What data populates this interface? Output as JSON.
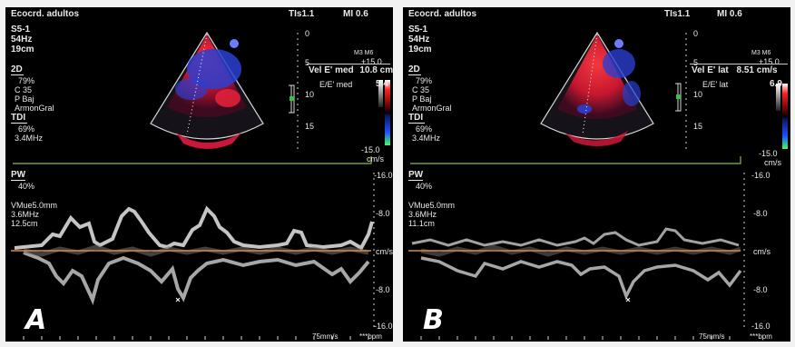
{
  "panels": [
    {
      "letter": "A",
      "header": {
        "title": "Ecocrd. adultos",
        "ti": "TIs1.1",
        "mi": "MI 0.6"
      },
      "probe": {
        "model": "S5-1",
        "frame_rate": "54Hz",
        "depth": "19cm"
      },
      "mode_2d": {
        "label": "2D",
        "gain": "79%",
        "compression": "C 35",
        "power": "P Baj",
        "harmonic": "ArmonGral"
      },
      "tdi": {
        "label": "TDI",
        "gain": "69%",
        "freq": "3.4MHz"
      },
      "depth_scale": [
        "0",
        "5",
        "10",
        "15"
      ],
      "color_scale": {
        "mode": "M3 M6",
        "top": "+15.0",
        "bottom": "-15.0",
        "unit": "cm/s"
      },
      "measurements": {
        "vel_label": "Vel E' med",
        "vel_value": "10.8 cm/s",
        "ratio_label": "E/E' med",
        "ratio_value": "5.4"
      },
      "pw": {
        "label": "PW",
        "gain": "40%",
        "sample": "VMue5.0mm",
        "freq": "3.6MHz",
        "depth": "12.5cm"
      },
      "velocity_scale": [
        "-16.0",
        "-8.0",
        "cm/s",
        "-8.0",
        "-16.0"
      ],
      "sweep": "75mm/s",
      "bpm": "***bpm"
    },
    {
      "letter": "B",
      "header": {
        "title": "Ecocrd. adultos",
        "ti": "TIs1.1",
        "mi": "MI 0.6"
      },
      "probe": {
        "model": "S5-1",
        "frame_rate": "54Hz",
        "depth": "19cm"
      },
      "mode_2d": {
        "label": "2D",
        "gain": "79%",
        "compression": "C 35",
        "power": "P Baj",
        "harmonic": "ArmonGral"
      },
      "tdi": {
        "label": "TDI",
        "gain": "69%",
        "freq": "3.4MHz"
      },
      "depth_scale": [
        "0",
        "5",
        "10",
        "15"
      ],
      "color_scale": {
        "mode": "M3 M6",
        "top": "+15.0",
        "bottom": "-15.0",
        "unit": "cm/s"
      },
      "measurements": {
        "vel_label": "Vel E' lat",
        "vel_value": "8.51 cm/s",
        "ratio_label": "E/E' lat",
        "ratio_value": "6.9"
      },
      "pw": {
        "label": "PW",
        "gain": "40%",
        "sample": "VMue5.0mm",
        "freq": "3.6MHz",
        "depth": "11.1cm"
      },
      "velocity_scale": [
        "-16.0",
        "-8.0",
        "cm/s",
        "-8.0",
        "-16.0"
      ],
      "sweep": "75mm/s",
      "bpm": "***bpm"
    }
  ],
  "colors": {
    "baseline": "#d98a3a",
    "timeline": "#7fbf4a",
    "doppler_red": "#e0203a",
    "doppler_blue": "#2a3fd0"
  }
}
